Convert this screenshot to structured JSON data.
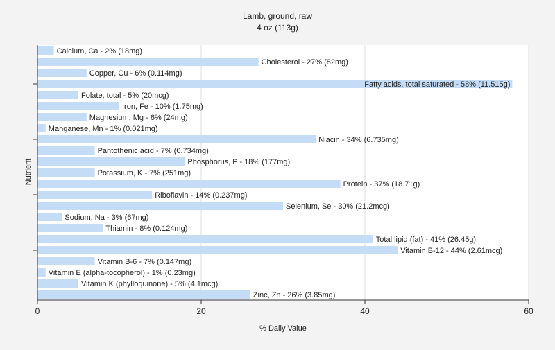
{
  "chart_data": {
    "type": "bar",
    "orientation": "horizontal",
    "title": "Lamb, ground, raw",
    "subtitle": "4 oz (113g)",
    "xlabel": "% Daily Value",
    "ylabel": "Nutrient",
    "xlim": [
      0,
      60
    ],
    "xticks": [
      0,
      20,
      40,
      60
    ],
    "grid": "vertical",
    "bar_color": "#c5dcf7",
    "categories": [
      "Calcium, Ca",
      "Cholesterol",
      "Copper, Cu",
      "Fatty acids, total saturated",
      "Folate, total",
      "Iron, Fe",
      "Magnesium, Mg",
      "Manganese, Mn",
      "Niacin",
      "Pantothenic acid",
      "Phosphorus, P",
      "Potassium, K",
      "Protein",
      "Riboflavin",
      "Selenium, Se",
      "Sodium, Na",
      "Thiamin",
      "Total lipid (fat)",
      "Vitamin B-12",
      "Vitamin B-6",
      "Vitamin E (alpha-tocopherol)",
      "Vitamin K (phylloquinone)",
      "Zinc, Zn"
    ],
    "values": [
      2,
      27,
      6,
      58,
      5,
      10,
      6,
      1,
      34,
      7,
      18,
      7,
      37,
      14,
      30,
      3,
      8,
      41,
      44,
      7,
      1,
      5,
      26
    ],
    "labels": [
      "Calcium, Ca - 2% (18mg)",
      "Cholesterol - 27% (82mg)",
      "Copper, Cu - 6% (0.114mg)",
      "Fatty acids, total saturated - 58% (11.515g)",
      "Folate, total - 5% (20mcg)",
      "Iron, Fe - 10% (1.75mg)",
      "Magnesium, Mg - 6% (24mg)",
      "Manganese, Mn - 1% (0.021mg)",
      "Niacin - 34% (6.735mg)",
      "Pantothenic acid - 7% (0.734mg)",
      "Phosphorus, P - 18% (177mg)",
      "Potassium, K - 7% (251mg)",
      "Protein - 37% (18.71g)",
      "Riboflavin - 14% (0.237mg)",
      "Selenium, Se - 30% (21.2mcg)",
      "Sodium, Na - 3% (67mg)",
      "Thiamin - 8% (0.124mg)",
      "Total lipid (fat) - 41% (26.45g)",
      "Vitamin B-12 - 44% (2.61mcg)",
      "Vitamin B-6 - 7% (0.147mg)",
      "Vitamin E (alpha-tocopherol) - 1% (0.23mg)",
      "Vitamin K (phylloquinone) - 5% (4.1mcg)",
      "Zinc, Zn - 26% (3.85mg)"
    ]
  }
}
